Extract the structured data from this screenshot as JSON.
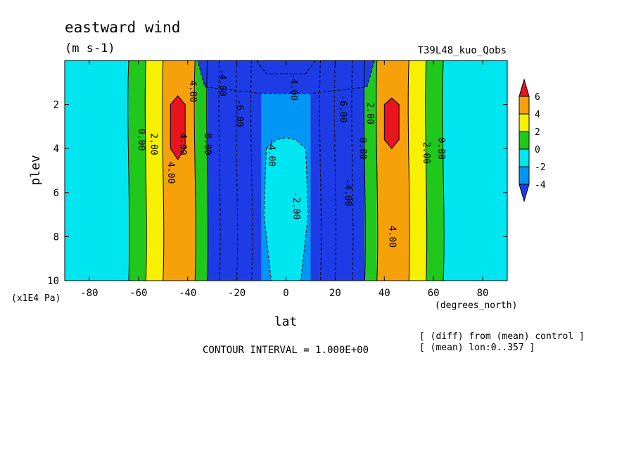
{
  "chart_data": {
    "type": "heatmap",
    "title": "eastward wind",
    "units": "(m s-1)",
    "experiment": "T39L48_kuo_Qobs",
    "xlabel": "lat",
    "x_units": "(degrees_north)",
    "ylabel": "plev",
    "y_units": "(x1E4 Pa)",
    "xlim": [
      -90,
      90
    ],
    "ylim": [
      0,
      10
    ],
    "y_inverted": true,
    "x_ticks": [
      "-80",
      "-60",
      "-40",
      "-20",
      "0",
      "20",
      "40",
      "60",
      "80"
    ],
    "x_tick_values": [
      -80,
      -60,
      -40,
      -20,
      0,
      20,
      40,
      60,
      80
    ],
    "y_ticks": [
      "2",
      "4",
      "6",
      "8",
      "10"
    ],
    "y_tick_values": [
      2,
      4,
      6,
      8,
      10
    ],
    "colorbar": {
      "labels": [
        "6",
        "4",
        "2",
        "0",
        "-2",
        "-4"
      ],
      "levels": [
        6,
        4,
        2,
        0,
        -2,
        -4
      ],
      "colors": [
        "#e8141e",
        "#f7a10a",
        "#f7f000",
        "#1fc81a",
        "#00e6f0",
        "#0096f5",
        "#1e3ce6"
      ]
    },
    "contour_interval": "CONTOUR INTERVAL = 1.000E+00",
    "note_diff": "[ (diff) from (mean) control ]",
    "note_mean": "[ (mean) lon:0..357 ]",
    "field_bands": [
      {
        "lat_range": [
          -90,
          -64
        ],
        "approx_value": -1.5
      },
      {
        "lat_range": [
          -64,
          -57
        ],
        "approx_value": 0.5
      },
      {
        "lat_range": [
          -57,
          -50
        ],
        "approx_value": 2.5
      },
      {
        "lat_range": [
          -50,
          -37
        ],
        "approx_value": 4.5,
        "max": 6.3,
        "max_at": [
          -45,
          3
        ]
      },
      {
        "lat_range": [
          -37,
          -32
        ],
        "approx_value": 0.5
      },
      {
        "lat_range": [
          -32,
          -10
        ],
        "approx_value": -4.5,
        "min": -6.5,
        "min_at": [
          -24,
          3
        ]
      },
      {
        "lat_range": [
          -10,
          10
        ],
        "approx_value": -2.5
      },
      {
        "lat_range": [
          10,
          32
        ],
        "approx_value": -4.5,
        "min": -6.3,
        "min_at": [
          22,
          3
        ]
      },
      {
        "lat_range": [
          32,
          37
        ],
        "approx_value": 0.5
      },
      {
        "lat_range": [
          37,
          50
        ],
        "approx_value": 4.5,
        "max": 6.2,
        "max_at": [
          44,
          2.7
        ]
      },
      {
        "lat_range": [
          50,
          57
        ],
        "approx_value": 2.5
      },
      {
        "lat_range": [
          57,
          64
        ],
        "approx_value": 0.5
      },
      {
        "lat_range": [
          64,
          90
        ],
        "approx_value": -1.5
      }
    ],
    "contour_labels": [
      {
        "text": "0.00",
        "lat": -60,
        "plev": 3.6
      },
      {
        "text": "2.00",
        "lat": -55,
        "plev": 3.8
      },
      {
        "text": "4.00",
        "lat": -48,
        "plev": 5.1
      },
      {
        "text": "4.00",
        "lat": -43,
        "plev": 3.8
      },
      {
        "text": "4.00",
        "lat": -39,
        "plev": 1.4
      },
      {
        "text": "0.00",
        "lat": -33,
        "plev": 3.8
      },
      {
        "text": "-6.00",
        "lat": -20,
        "plev": 2.4
      },
      {
        "text": "-4.00",
        "lat": -27,
        "plev": 1.0
      },
      {
        "text": "-4.00",
        "lat": -7,
        "plev": 4.2
      },
      {
        "text": "-4.00",
        "lat": 2,
        "plev": 1.2
      },
      {
        "text": "-2.00",
        "lat": 3,
        "plev": 6.6
      },
      {
        "text": "-6.00",
        "lat": 22,
        "plev": 2.2
      },
      {
        "text": "-4.00",
        "lat": 24,
        "plev": 6.0
      },
      {
        "text": "2.00",
        "lat": 33,
        "plev": 2.4
      },
      {
        "text": "0.00",
        "lat": 30,
        "plev": 4.0
      },
      {
        "text": "4.00",
        "lat": 42,
        "plev": 8.0
      },
      {
        "text": "2.00",
        "lat": 56,
        "plev": 4.2
      },
      {
        "text": "0.00",
        "lat": 62,
        "plev": 4.0
      }
    ]
  }
}
